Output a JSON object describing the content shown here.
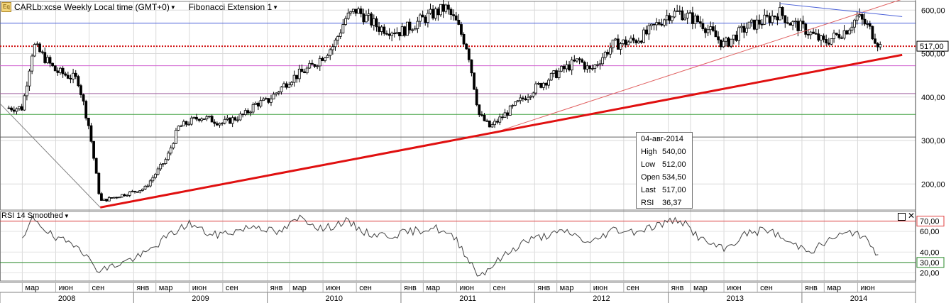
{
  "header": {
    "symbol_title": "CARLb:xcse Weekly Local time (GMT+0)",
    "indicator_title": "Fibonacci Extension 1",
    "icon_text": "Eq"
  },
  "rsi_panel": {
    "title": "RSI 14 Smoothed"
  },
  "ohlc_tooltip": {
    "date": "04-авг-2014",
    "rows": [
      {
        "key": "High",
        "value": "540,00"
      },
      {
        "key": "Low",
        "value": "512,00"
      },
      {
        "key": "Open",
        "value": "534,50"
      },
      {
        "key": "Last",
        "value": "517,00"
      },
      {
        "key": "RSI",
        "value": "36,37"
      }
    ]
  },
  "colors": {
    "up_candle": "#ffffff",
    "down_candle": "#000000",
    "trend_line": "#e01010",
    "fib_line": "#e06060",
    "blue_line": "#4a60d8",
    "price_line": "#d01010",
    "magenta_line": "#d060d0",
    "purple_line": "#a060a0",
    "green_line": "#40a040",
    "gray_line": "#606060",
    "rsi_70_line": "#e04040",
    "rsi_30_line": "#2a8a2a"
  },
  "chart_data": [
    {
      "type": "candlestick",
      "title": "CARLb:xcse Weekly",
      "y_ticks": [
        "600,00",
        "500,00",
        "400,00",
        "300,00",
        "200,00"
      ],
      "ylim": [
        140,
        620
      ],
      "last_price_label": "517,00",
      "horizontal_levels": [
        570,
        517,
        472,
        408,
        360,
        308
      ],
      "trend_line": {
        "from": [
          "2008-10",
          146
        ],
        "to": [
          "2014-10",
          497
        ]
      },
      "fib_line": {
        "from": [
          "2011-09",
          315
        ],
        "to": [
          "2014-10",
          625
        ]
      },
      "blue_line": {
        "from": [
          "2013-11",
          615
        ],
        "to": [
          "2014-10",
          585
        ]
      },
      "gray_line": {
        "from": [
          "2008-01",
          385
        ],
        "to": [
          "2008-10",
          146
        ]
      },
      "weekly_close_profile": [
        [
          "2008-03",
          375
        ],
        [
          "2008-04",
          520
        ],
        [
          "2008-06",
          460
        ],
        [
          "2008-08",
          440
        ],
        [
          "2008-09",
          330
        ],
        [
          "2008-10",
          160
        ],
        [
          "2008-12",
          175
        ],
        [
          "2009-02",
          190
        ],
        [
          "2009-04",
          260
        ],
        [
          "2009-05",
          330
        ],
        [
          "2009-07",
          355
        ],
        [
          "2009-09",
          340
        ],
        [
          "2009-11",
          360
        ],
        [
          "2009-12",
          385
        ],
        [
          "2010-01",
          390
        ],
        [
          "2010-03",
          440
        ],
        [
          "2010-05",
          470
        ],
        [
          "2010-07",
          520
        ],
        [
          "2010-08",
          580
        ],
        [
          "2010-09",
          600
        ],
        [
          "2010-11",
          560
        ],
        [
          "2011-01",
          550
        ],
        [
          "2011-03",
          580
        ],
        [
          "2011-05",
          605
        ],
        [
          "2011-06",
          570
        ],
        [
          "2011-07",
          510
        ],
        [
          "2011-08",
          360
        ],
        [
          "2011-09",
          330
        ],
        [
          "2011-11",
          375
        ],
        [
          "2012-01",
          420
        ],
        [
          "2012-03",
          455
        ],
        [
          "2012-05",
          485
        ],
        [
          "2012-06",
          460
        ],
        [
          "2012-08",
          520
        ],
        [
          "2012-10",
          530
        ],
        [
          "2012-11",
          545
        ],
        [
          "2013-01",
          590
        ],
        [
          "2013-02",
          595
        ],
        [
          "2013-04",
          570
        ],
        [
          "2013-06",
          520
        ],
        [
          "2013-08",
          560
        ],
        [
          "2013-10",
          580
        ],
        [
          "2013-11",
          595
        ],
        [
          "2013-12",
          570
        ],
        [
          "2014-01",
          560
        ],
        [
          "2014-03",
          525
        ],
        [
          "2014-05",
          555
        ],
        [
          "2014-06",
          585
        ],
        [
          "2014-07",
          560
        ],
        [
          "2014-08",
          517
        ]
      ]
    },
    {
      "type": "line",
      "title": "RSI 14 Smoothed",
      "y_ticks": [
        "70,00",
        "60,00",
        "40,00",
        "30,00",
        "20,00"
      ],
      "highlight_levels": [
        "70,00",
        "30,00"
      ],
      "ylim": [
        12,
        78
      ],
      "rsi_profile": [
        [
          "2008-03",
          50
        ],
        [
          "2008-04",
          74
        ],
        [
          "2008-06",
          52
        ],
        [
          "2008-08",
          48
        ],
        [
          "2008-09",
          32
        ],
        [
          "2008-10",
          22
        ],
        [
          "2008-12",
          30
        ],
        [
          "2009-02",
          38
        ],
        [
          "2009-04",
          55
        ],
        [
          "2009-06",
          68
        ],
        [
          "2009-08",
          56
        ],
        [
          "2009-10",
          60
        ],
        [
          "2009-12",
          66
        ],
        [
          "2010-02",
          58
        ],
        [
          "2010-04",
          74
        ],
        [
          "2010-06",
          62
        ],
        [
          "2010-08",
          70
        ],
        [
          "2010-10",
          58
        ],
        [
          "2010-12",
          56
        ],
        [
          "2011-02",
          60
        ],
        [
          "2011-04",
          64
        ],
        [
          "2011-06",
          52
        ],
        [
          "2011-08",
          17
        ],
        [
          "2011-10",
          34
        ],
        [
          "2011-12",
          50
        ],
        [
          "2012-02",
          56
        ],
        [
          "2012-04",
          60
        ],
        [
          "2012-06",
          48
        ],
        [
          "2012-08",
          62
        ],
        [
          "2012-10",
          60
        ],
        [
          "2012-12",
          66
        ],
        [
          "2013-02",
          72
        ],
        [
          "2013-04",
          52
        ],
        [
          "2013-06",
          42
        ],
        [
          "2013-08",
          58
        ],
        [
          "2013-10",
          62
        ],
        [
          "2013-12",
          48
        ],
        [
          "2014-02",
          42
        ],
        [
          "2014-04",
          55
        ],
        [
          "2014-06",
          60
        ],
        [
          "2014-08",
          36
        ]
      ]
    }
  ],
  "x_axis": {
    "month_labels": [
      {
        "date": "2008-03",
        "label": "мар"
      },
      {
        "date": "2008-06",
        "label": "июн"
      },
      {
        "date": "2008-09",
        "label": "сен"
      },
      {
        "date": "2009-01",
        "label": "янв"
      },
      {
        "date": "2009-03",
        "label": "мар"
      },
      {
        "date": "2009-06",
        "label": "июн"
      },
      {
        "date": "2009-09",
        "label": "сен"
      },
      {
        "date": "2010-01",
        "label": "янв"
      },
      {
        "date": "2010-03",
        "label": "мар"
      },
      {
        "date": "2010-06",
        "label": "июн"
      },
      {
        "date": "2010-09",
        "label": "сен"
      },
      {
        "date": "2011-01",
        "label": "янв"
      },
      {
        "date": "2011-03",
        "label": "мар"
      },
      {
        "date": "2011-06",
        "label": "июн"
      },
      {
        "date": "2011-09",
        "label": "сен"
      },
      {
        "date": "2012-01",
        "label": "янв"
      },
      {
        "date": "2012-03",
        "label": "мар"
      },
      {
        "date": "2012-06",
        "label": "июн"
      },
      {
        "date": "2012-09",
        "label": "сен"
      },
      {
        "date": "2013-01",
        "label": "янв"
      },
      {
        "date": "2013-03",
        "label": "мар"
      },
      {
        "date": "2013-06",
        "label": "июн"
      },
      {
        "date": "2013-09",
        "label": "сен"
      },
      {
        "date": "2014-01",
        "label": "янв"
      },
      {
        "date": "2014-03",
        "label": "мар"
      },
      {
        "date": "2014-06",
        "label": "июн"
      }
    ],
    "year_labels": [
      "2008",
      "2009",
      "2010",
      "2011",
      "2012",
      "2013",
      "2014"
    ]
  }
}
